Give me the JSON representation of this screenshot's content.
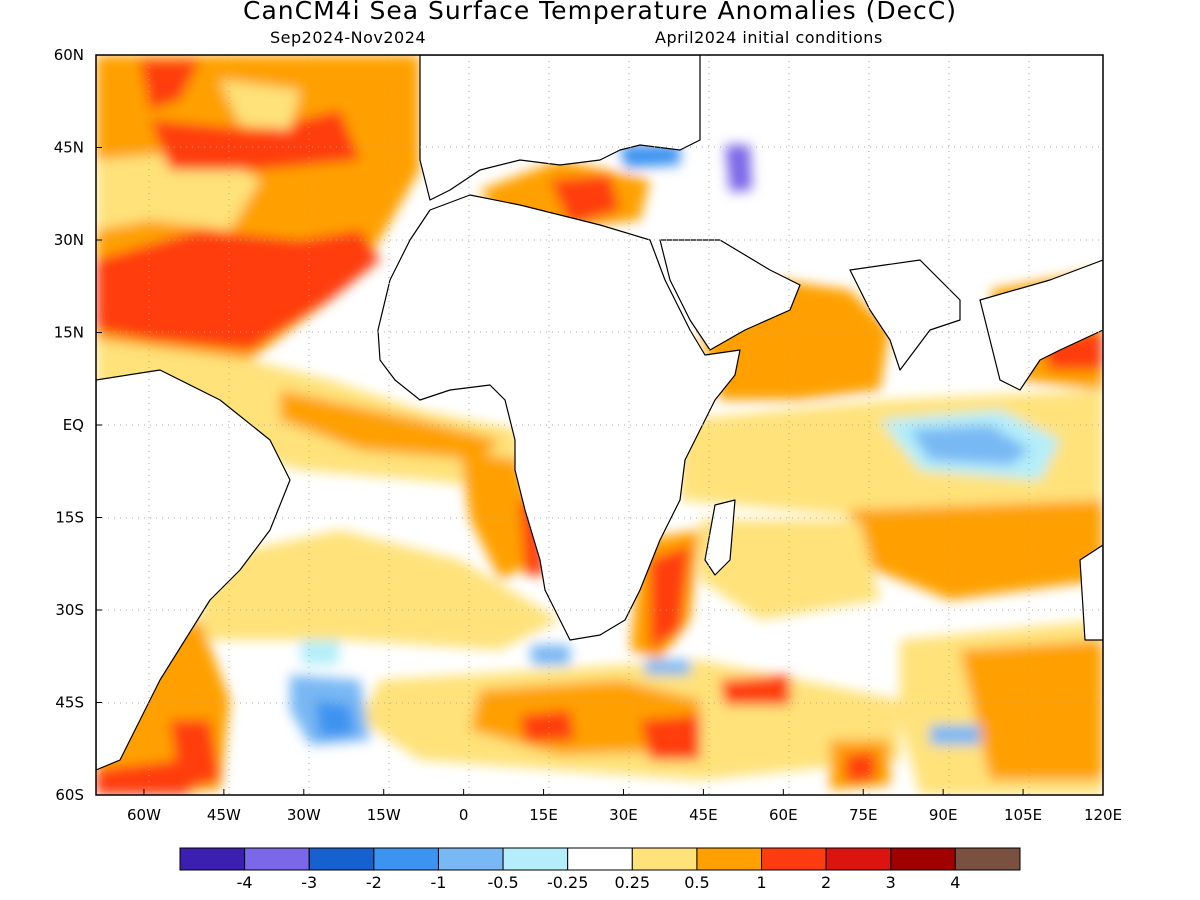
{
  "header": {
    "title": "CanCM4i Sea Surface Temperature Anomalies (DecC)",
    "period": "Sep2024-Nov2024",
    "init": "April2024 initial conditions"
  },
  "axes": {
    "lat_labels": [
      {
        "text": "60N",
        "value": 60
      },
      {
        "text": "45N",
        "value": 45
      },
      {
        "text": "30N",
        "value": 30
      },
      {
        "text": "15N",
        "value": 15
      },
      {
        "text": "EQ",
        "value": 0
      },
      {
        "text": "15S",
        "value": -15
      },
      {
        "text": "30S",
        "value": -30
      },
      {
        "text": "45S",
        "value": -45
      },
      {
        "text": "60S",
        "value": -60
      }
    ],
    "lon_labels": [
      {
        "text": "60W",
        "value": -60
      },
      {
        "text": "45W",
        "value": -45
      },
      {
        "text": "30W",
        "value": -30
      },
      {
        "text": "15W",
        "value": -15
      },
      {
        "text": "0",
        "value": 0
      },
      {
        "text": "15E",
        "value": 15
      },
      {
        "text": "30E",
        "value": 30
      },
      {
        "text": "45E",
        "value": 45
      },
      {
        "text": "60E",
        "value": 60
      },
      {
        "text": "75E",
        "value": 75
      },
      {
        "text": "90E",
        "value": 90
      },
      {
        "text": "105E",
        "value": 105
      },
      {
        "text": "120E",
        "value": 120
      }
    ],
    "lon_range": [
      -69,
      120
    ],
    "lat_range": [
      -60,
      60
    ]
  },
  "colorbar": {
    "colors": [
      "#3a1fb0",
      "#7b68e8",
      "#1760d0",
      "#3c93f0",
      "#78b8f4",
      "#b4eefa",
      "#ffffff",
      "#ffe27a",
      "#ffa000",
      "#ff3c10",
      "#dc1410",
      "#a00000",
      "#7a5040"
    ],
    "labels": [
      "-4",
      "-3",
      "-2",
      "-1",
      "-0.5",
      "-0.25",
      "0.25",
      "0.5",
      "1",
      "2",
      "3",
      "4"
    ]
  },
  "colors": {
    "land": "#ffffff",
    "coast": "#000000",
    "grid": "#aaaaaa"
  }
}
